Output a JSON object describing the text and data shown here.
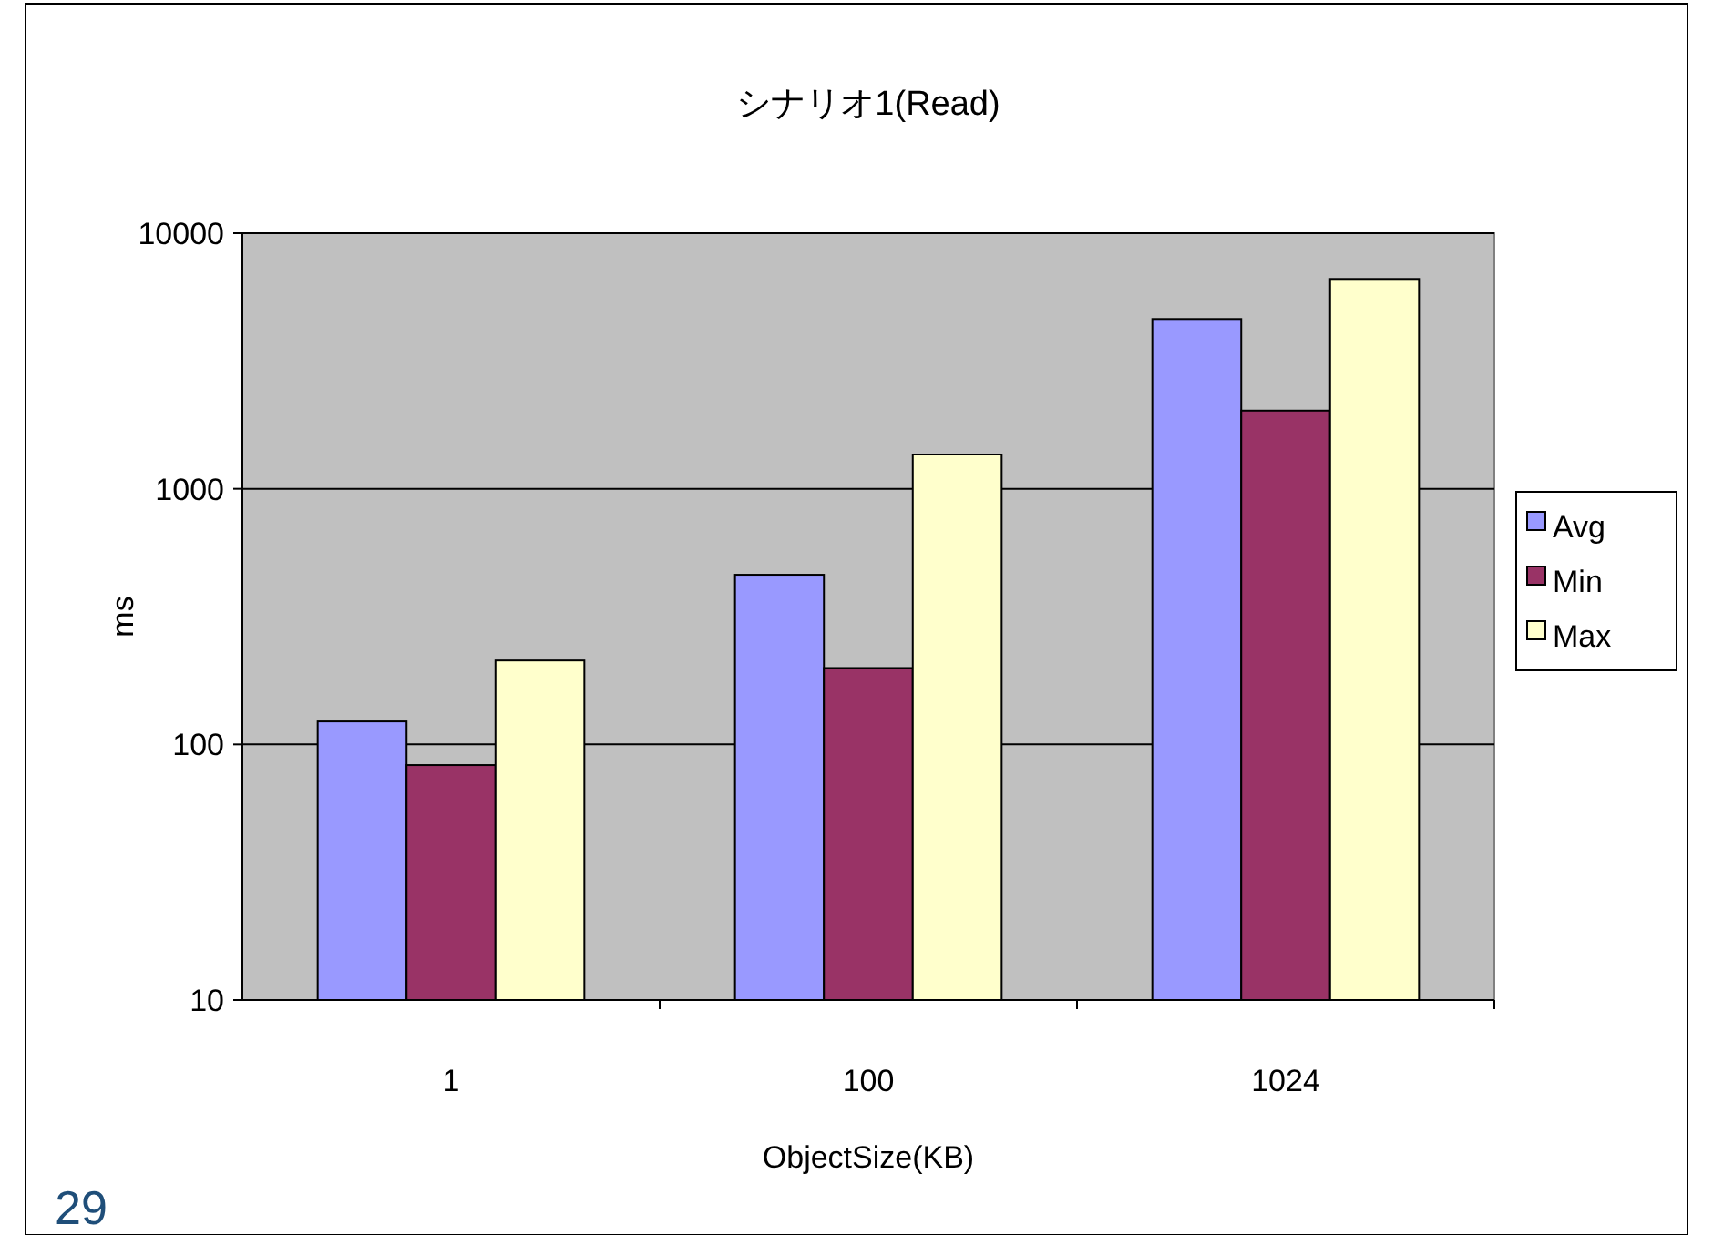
{
  "chart_data": {
    "type": "bar",
    "title": "シナリオ1(Read)",
    "xlabel": "ObjectSize(KB)",
    "ylabel": "ms",
    "categories": [
      "1",
      "100",
      "1024"
    ],
    "series": [
      {
        "name": "Avg",
        "color": "#9999ff",
        "values": [
          123,
          461,
          4614
        ]
      },
      {
        "name": "Min",
        "color": "#993366",
        "values": [
          83,
          199,
          2023
        ]
      },
      {
        "name": "Max",
        "color": "#ffffcc",
        "values": [
          213,
          1362,
          6620
        ]
      }
    ],
    "log": "y",
    "ylim": [
      10,
      10000
    ],
    "yticks": [
      10,
      100,
      1000,
      10000
    ],
    "grid": "y",
    "legend": "right",
    "annotations": [
      "29"
    ]
  }
}
